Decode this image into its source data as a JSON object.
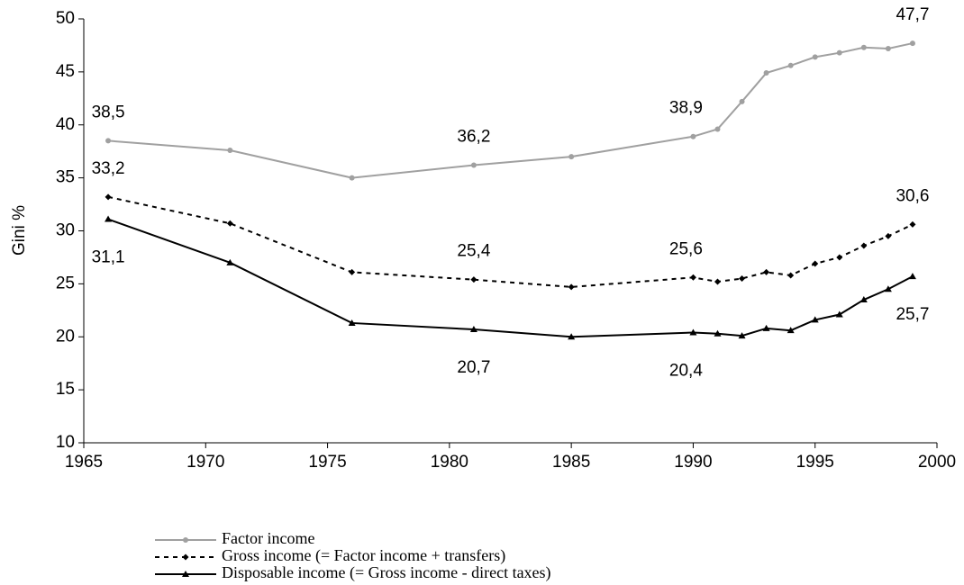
{
  "chart_data": {
    "type": "line",
    "y_label": "Gini %",
    "x": [
      1966,
      1971,
      1976,
      1981,
      1985,
      1990,
      1991,
      1992,
      1993,
      1994,
      1995,
      1996,
      1997,
      1998,
      1999
    ],
    "series": [
      {
        "name": "Factor income",
        "color": "#a0a0a0",
        "dash": "solid",
        "marker": "circle",
        "values": [
          38.5,
          37.6,
          35.0,
          36.2,
          37.0,
          38.9,
          39.6,
          42.2,
          44.9,
          45.6,
          46.4,
          46.8,
          47.3,
          47.2,
          47.7
        ],
        "value_labels": [
          "38,5",
          null,
          null,
          "36,2",
          null,
          "38,9",
          null,
          null,
          null,
          null,
          null,
          null,
          null,
          null,
          "47,7"
        ]
      },
      {
        "name": "Gross income (= Factor income + transfers)",
        "color": "#000000",
        "dash": "dotted",
        "marker": "diamond",
        "values": [
          33.2,
          30.7,
          26.1,
          25.4,
          24.7,
          25.6,
          25.2,
          25.5,
          26.1,
          25.8,
          26.9,
          27.5,
          28.6,
          29.5,
          30.6
        ],
        "value_labels": [
          "33,2",
          null,
          null,
          "25,4",
          null,
          "25,6",
          null,
          null,
          null,
          null,
          null,
          null,
          null,
          null,
          "30,6"
        ]
      },
      {
        "name": "Disposable income (= Gross income - direct taxes)",
        "color": "#000000",
        "dash": "solid",
        "marker": "triangle",
        "values": [
          31.1,
          27.0,
          21.3,
          20.7,
          20.0,
          20.4,
          20.3,
          20.1,
          20.8,
          20.6,
          21.6,
          22.1,
          23.5,
          24.5,
          25.7
        ],
        "value_labels": [
          "31,1",
          null,
          null,
          "20,7",
          null,
          "20,4",
          null,
          null,
          null,
          null,
          null,
          null,
          null,
          null,
          "25,7"
        ]
      }
    ],
    "xlim": [
      1965,
      2000
    ],
    "xticks": [
      1965,
      1970,
      1975,
      1980,
      1985,
      1990,
      1995,
      2000
    ],
    "ylim": [
      10,
      50
    ],
    "yticks": [
      10,
      15,
      20,
      25,
      30,
      35,
      40,
      45,
      50
    ],
    "grid": false,
    "legend": "bottom"
  }
}
